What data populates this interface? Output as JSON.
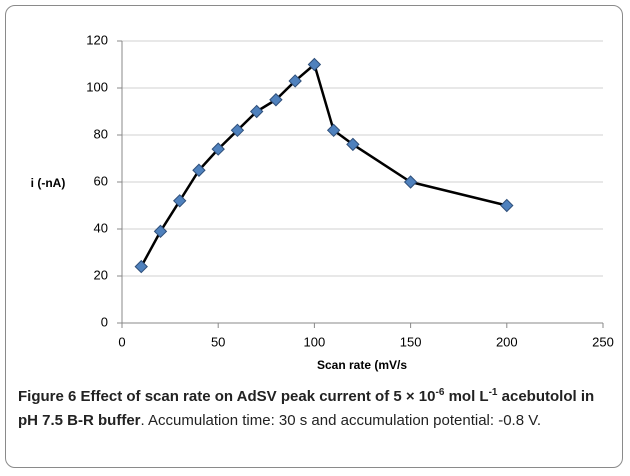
{
  "chart_data": {
    "type": "line",
    "x": [
      10,
      20,
      30,
      40,
      50,
      60,
      70,
      80,
      90,
      100,
      110,
      120,
      150,
      200
    ],
    "series": [
      {
        "name": null,
        "color": "#000000",
        "marker_color": "#4f81bd",
        "values": [
          24,
          39,
          52,
          65,
          74,
          82,
          90,
          95,
          103,
          110,
          82,
          76,
          60,
          50
        ]
      }
    ],
    "xlim": [
      0,
      250
    ],
    "xticks": [
      0,
      50,
      100,
      150,
      200,
      250
    ],
    "ylim": [
      0,
      120
    ],
    "yticks": [
      0,
      20,
      40,
      60,
      80,
      100,
      120
    ],
    "xlabel": "Scan rate (mV/s",
    "ylabel": "i (-nA)",
    "grid": true
  },
  "caption": {
    "label": "Figure 6",
    "title_parts": [
      " Effect of scan rate on AdSV peak current of 5 × 10",
      "-6",
      " mol L",
      "-1",
      " acebutolol in pH 7.5 B-R buffer"
    ],
    "text": ". Accumulation time: 30 s and accumulation potential: -0.8 V."
  }
}
